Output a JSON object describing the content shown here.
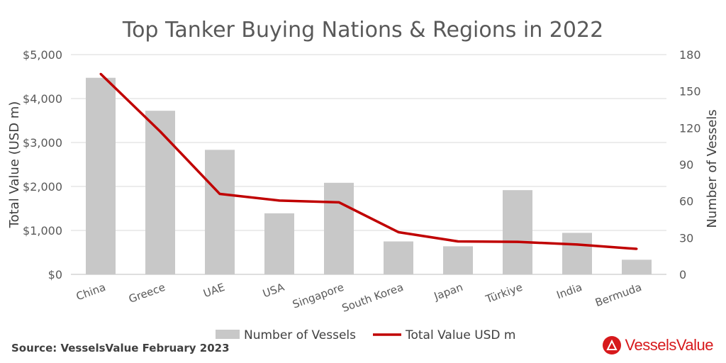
{
  "chart_data": {
    "type": "bar+line",
    "title": "Top Tanker Buying Nations & Regions in 2022",
    "categories": [
      "China",
      "Greece",
      "UAE",
      "USA",
      "Singapore",
      "South Korea",
      "Japan",
      "Türkiye",
      "India",
      "Bermuda"
    ],
    "series": [
      {
        "name": "Number of Vessels",
        "type": "bar",
        "axis": "right",
        "color": "#c8c8c8",
        "values": [
          161,
          134,
          102,
          50,
          75,
          27,
          23,
          69,
          34,
          12
        ]
      },
      {
        "name": "Total Value USD m",
        "type": "line",
        "axis": "left",
        "color": "#c00000",
        "values": [
          4560,
          3250,
          1830,
          1680,
          1640,
          960,
          750,
          740,
          680,
          580
        ]
      }
    ],
    "left_axis": {
      "label": "Total Value (USD m)",
      "min": 0,
      "max": 5000,
      "ticks": [
        "$0",
        "$1,000",
        "$2,000",
        "$3,000",
        "$4,000",
        "$5,000"
      ],
      "tick_values": [
        0,
        1000,
        2000,
        3000,
        4000,
        5000
      ]
    },
    "right_axis": {
      "label": "Number of Vessels",
      "min": 0,
      "max": 180,
      "ticks": [
        "0",
        "30",
        "60",
        "90",
        "120",
        "150",
        "180"
      ],
      "tick_values": [
        0,
        30,
        60,
        90,
        120,
        150,
        180
      ]
    },
    "legend": {
      "position": "bottom",
      "items": [
        "Number of Vessels",
        "Total Value USD m"
      ]
    }
  },
  "footer": {
    "source": "Source: VesselsValue February 2023",
    "brand": "VesselsValue"
  }
}
